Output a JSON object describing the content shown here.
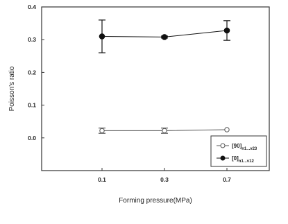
{
  "chart_data": {
    "type": "line",
    "xlabel": "Forming pressure(MPa)",
    "ylabel": "Poisson's ratio",
    "categories": [
      "0.1",
      "0.3",
      "0.7"
    ],
    "ylim": [
      -0.1,
      0.4
    ],
    "yticks": [
      0.0,
      0.1,
      0.2,
      0.3,
      0.4
    ],
    "ytick_labels": [
      "0.0",
      "0.1",
      "0.2",
      "0.3",
      "0.4"
    ],
    "grid": false,
    "legend_position": "bottom-right",
    "series": [
      {
        "name": "[90]n1...v23",
        "legend_main": "[90]",
        "legend_sub": "n1...v23",
        "marker": "open-circle",
        "color": "#555555",
        "values": [
          0.022,
          0.022,
          0.025
        ],
        "errors": [
          0.008,
          0.008,
          0.0
        ]
      },
      {
        "name": "[0]n1...v12",
        "legend_main": "[0]",
        "legend_sub": "n1...v12",
        "marker": "filled-circle",
        "color": "#111111",
        "values": [
          0.31,
          0.308,
          0.328
        ],
        "errors": [
          0.05,
          0.003,
          0.03
        ]
      }
    ]
  }
}
